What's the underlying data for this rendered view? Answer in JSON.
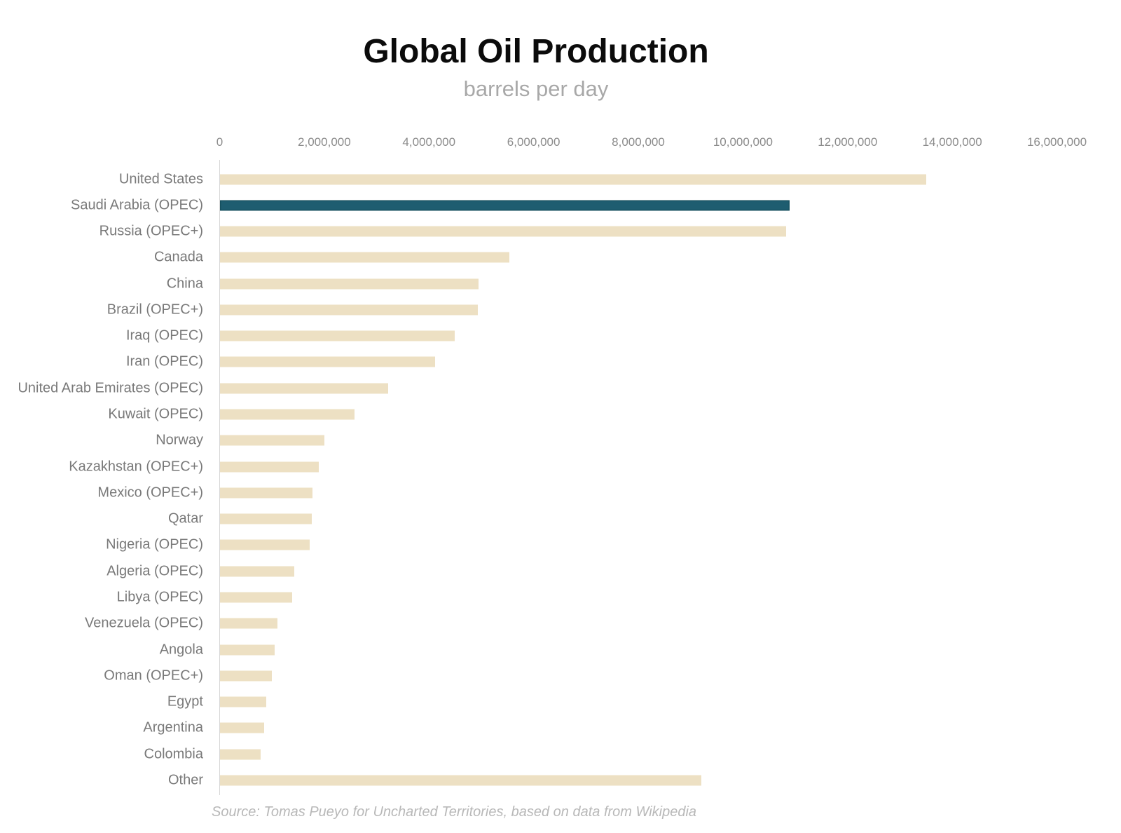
{
  "title": "Global Oil Production",
  "subtitle": "barrels per day",
  "source_note": "Source: Tomas Pueyo for Uncharted Territories, based on data from Wikipedia",
  "colors": {
    "bar": "#ede0c3",
    "highlight_bar": "#1e5d70",
    "highlight_border": "#154f5e",
    "axis_line": "#d6d6d6",
    "tick_text": "#8c8c8c",
    "category_text": "#797979",
    "title_text": "#0b0b0b",
    "subtitle_text": "#a8a8a8",
    "source_text": "#b8b8b8"
  },
  "chart_data": {
    "type": "bar",
    "orientation": "horizontal",
    "title": "Global Oil Production",
    "subtitle": "barrels per day",
    "xlabel": "barrels per day",
    "ylabel": "",
    "xlim": [
      0,
      16000000
    ],
    "grid": false,
    "legend": false,
    "axis_position": "top",
    "x_ticks": [
      0,
      2000000,
      4000000,
      6000000,
      8000000,
      10000000,
      12000000,
      14000000,
      16000000
    ],
    "x_tick_labels": [
      "0",
      "2,000,000",
      "4,000,000",
      "6,000,000",
      "8,000,000",
      "10,000,000",
      "12,000,000",
      "14,000,000",
      "16,000,000"
    ],
    "highlight_category": "Saudi Arabia (OPEC)",
    "highlight_index": 1,
    "categories": [
      "United States",
      "Saudi Arabia (OPEC)",
      "Russia (OPEC+)",
      "Canada",
      "China",
      "Brazil (OPEC+)",
      "Iraq (OPEC)",
      "Iran (OPEC)",
      "United Arab Emirates (OPEC)",
      "Kuwait (OPEC)",
      "Norway",
      "Kazakhstan (OPEC+)",
      "Mexico (OPEC+)",
      "Qatar",
      "Nigeria (OPEC)",
      "Algeria (OPEC)",
      "Libya (OPEC)",
      "Venezuela (OPEC)",
      "Angola",
      "Oman (OPEC+)",
      "Egypt",
      "Argentina",
      "Colombia",
      "Other"
    ],
    "values": [
      13490000,
      10890000,
      10820000,
      5530000,
      4940000,
      4930000,
      4490000,
      4110000,
      3220000,
      2570000,
      2000000,
      1890000,
      1770000,
      1750000,
      1710000,
      1420000,
      1380000,
      1100000,
      1040000,
      990000,
      880000,
      840000,
      770000,
      9200000
    ]
  }
}
